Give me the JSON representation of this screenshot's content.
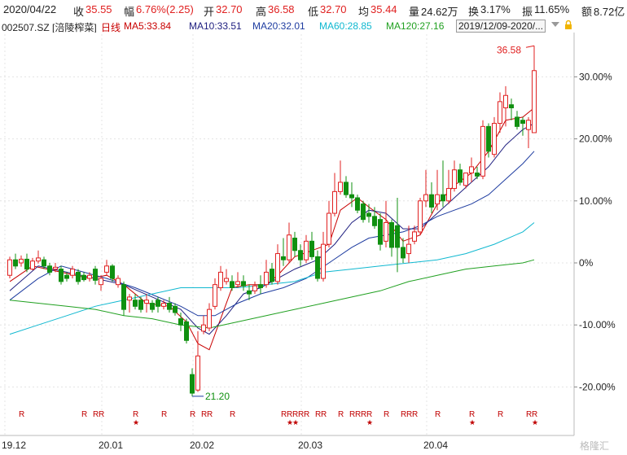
{
  "quote": {
    "date": "2020/04/22",
    "close_label": "收",
    "close": "35.55",
    "change_label": "幅",
    "change": "6.76%(2.25)",
    "open_label": "开",
    "open": "32.70",
    "high_label": "高",
    "high": "36.58",
    "low_label": "低",
    "low": "32.70",
    "avg_label": "均",
    "avg": "35.44",
    "volume_label": "量",
    "volume": "24.62万",
    "turnover_label": "换",
    "turnover": "3.17%",
    "amplitude_label": "振",
    "amplitude": "11.65%",
    "amount_label": "额",
    "amount": "8.72亿"
  },
  "indicators": {
    "symbol": "002507.SZ [涪陵榨菜]",
    "period": "日线",
    "ma5": "MA5:33.84",
    "ma10": "MA10:33.51",
    "ma20": "MA20:32.01",
    "ma60": "MA60:28.85",
    "ma120": "MA120:27.16",
    "range": "2019/12/09-2020/..."
  },
  "colors": {
    "up": "#e02020",
    "down": "#109010",
    "ma5": "#c80000",
    "ma10": "#202080",
    "ma20": "#1e3ca0",
    "ma60": "#10b8d0",
    "ma120": "#20a020",
    "grid": "#e4e4e4"
  },
  "icons": [
    "dropdown-arrow-icon",
    "lock-icon"
  ],
  "watermark": "格隆汇",
  "chart_data": {
    "type": "candlestick",
    "y_unit": "%",
    "ylim": [
      -24,
      40
    ],
    "y_ticks": [
      "30.00%",
      "20.00%",
      "10.00%",
      "0%",
      "-10.00%",
      "-20.00%"
    ],
    "y_tick_values": [
      30,
      20,
      10,
      0,
      -10,
      -20
    ],
    "x_ticks": [
      "19.12",
      "20.01",
      "20.02",
      "20.03",
      "20.04"
    ],
    "x_tick_index": [
      0,
      17,
      33,
      52,
      74
    ],
    "high_annotation": "36.58",
    "low_annotation": "21.20",
    "candles": [
      [
        0,
        -2.0,
        0.5,
        -2.5,
        1.0
      ],
      [
        1,
        0.5,
        -0.5,
        -1.0,
        1.5
      ],
      [
        2,
        0.0,
        0.6,
        -0.6,
        1.2
      ],
      [
        3,
        0.6,
        -1.0,
        -1.5,
        1.5
      ],
      [
        4,
        -1.0,
        0.3,
        -1.2,
        0.8
      ],
      [
        5,
        0.3,
        0.8,
        -0.1,
        2.0
      ],
      [
        6,
        0.5,
        -0.5,
        -1.0,
        1.0
      ],
      [
        7,
        -0.5,
        -1.5,
        -2.0,
        0.0
      ],
      [
        8,
        -1.0,
        -0.7,
        -1.5,
        0.0
      ],
      [
        9,
        -1.0,
        -3.0,
        -3.5,
        -0.5
      ],
      [
        10,
        -2.0,
        -2.5,
        -3.0,
        -1.5
      ],
      [
        11,
        -2.0,
        -1.0,
        -2.5,
        -0.5
      ],
      [
        12,
        -1.5,
        -3.0,
        -3.5,
        -1.0
      ],
      [
        13,
        -2.0,
        -2.7,
        -3.0,
        -1.5
      ],
      [
        14,
        -2.5,
        -2.0,
        -3.0,
        -1.5
      ],
      [
        15,
        -1.0,
        -2.8,
        -3.5,
        -0.5
      ],
      [
        16,
        -3.5,
        -2.5,
        -4.5,
        -2.0
      ],
      [
        17,
        -1.5,
        -0.5,
        -2.0,
        0.5
      ],
      [
        18,
        -0.5,
        -2.5,
        -3.0,
        -0.2
      ],
      [
        19,
        -3.5,
        -2.5,
        -4.0,
        -2.0
      ],
      [
        20,
        -3.5,
        -7.5,
        -8.5,
        -3.0
      ],
      [
        21,
        -6.0,
        -5.5,
        -8.0,
        -5.0
      ],
      [
        22,
        -6.0,
        -7.0,
        -7.5,
        -5.0
      ],
      [
        23,
        -6.0,
        -7.5,
        -8.0,
        -5.5
      ],
      [
        24,
        -6.5,
        -6.0,
        -8.0,
        -5.0
      ],
      [
        25,
        -6.5,
        -7.5,
        -8.0,
        -6.0
      ],
      [
        26,
        -6.0,
        -7.0,
        -8.0,
        -5.5
      ],
      [
        27,
        -7.0,
        -6.5,
        -7.5,
        -6.0
      ],
      [
        28,
        -6.5,
        -7.5,
        -8.0,
        -5.5
      ],
      [
        29,
        -7.0,
        -8.0,
        -8.5,
        -6.5
      ],
      [
        30,
        -9.0,
        -10.0,
        -11.0,
        -8.0
      ],
      [
        31,
        -9.5,
        -12.5,
        -13.0,
        -9.0
      ],
      [
        32,
        -18.0,
        -21.0,
        -21.5,
        -17.0
      ],
      [
        33,
        -20.5,
        -15.0,
        -20.8,
        -11.0
      ],
      [
        34,
        -11.0,
        -10.0,
        -11.5,
        -8.5
      ],
      [
        35,
        -10.5,
        -7.5,
        -11.0,
        -6.5
      ],
      [
        36,
        -7.0,
        -3.5,
        -7.5,
        -2.5
      ],
      [
        37,
        -4.0,
        -1.5,
        -4.5,
        -0.5
      ],
      [
        38,
        -3.0,
        -2.5,
        -3.5,
        -1.0
      ],
      [
        39,
        -3.0,
        -4.0,
        -4.5,
        -2.0
      ],
      [
        40,
        -3.5,
        -3.0,
        -4.0,
        -1.5
      ],
      [
        41,
        -3.0,
        -3.7,
        -4.5,
        -2.0
      ],
      [
        42,
        -4.5,
        -5.0,
        -6.0,
        -3.5
      ],
      [
        43,
        -4.5,
        -3.7,
        -5.0,
        -3.0
      ],
      [
        44,
        -3.5,
        -4.0,
        -5.0,
        -2.0
      ],
      [
        45,
        -3.5,
        -1.5,
        -4.0,
        0.5
      ],
      [
        46,
        -1.0,
        -3.0,
        -3.5,
        0.0
      ],
      [
        47,
        -3.0,
        1.5,
        -3.5,
        3.0
      ],
      [
        48,
        1.0,
        0.5,
        -0.5,
        4.0
      ],
      [
        49,
        0.5,
        4.5,
        0.0,
        6.5
      ],
      [
        50,
        4.0,
        2.0,
        1.0,
        5.0
      ],
      [
        51,
        2.0,
        0.5,
        -0.5,
        3.0
      ],
      [
        52,
        0.5,
        3.5,
        0.0,
        4.5
      ],
      [
        53,
        3.5,
        1.0,
        0.5,
        5.0
      ],
      [
        54,
        1.0,
        -2.5,
        -3.0,
        2.0
      ],
      [
        55,
        -2.5,
        3.0,
        -3.0,
        5.0
      ],
      [
        56,
        3.0,
        8.0,
        2.5,
        10.0
      ],
      [
        57,
        8.0,
        11.5,
        7.5,
        14.5
      ],
      [
        58,
        11.5,
        13.0,
        11.0,
        16.5
      ],
      [
        59,
        13.0,
        11.0,
        10.5,
        14.0
      ],
      [
        60,
        11.0,
        10.5,
        9.0,
        13.0
      ],
      [
        61,
        10.5,
        8.5,
        8.0,
        11.0
      ],
      [
        62,
        9.5,
        7.0,
        6.5,
        10.0
      ],
      [
        63,
        8.0,
        7.5,
        6.5,
        9.5
      ],
      [
        64,
        7.5,
        6.0,
        5.5,
        9.0
      ],
      [
        65,
        7.0,
        3.0,
        2.0,
        8.0
      ],
      [
        66,
        3.5,
        6.5,
        2.5,
        10.0
      ],
      [
        67,
        6.5,
        2.5,
        1.0,
        7.0
      ],
      [
        68,
        6.0,
        2.5,
        -1.5,
        10.5
      ],
      [
        69,
        2.5,
        0.8,
        0.0,
        4.0
      ],
      [
        70,
        1.5,
        3.0,
        0.0,
        6.0
      ],
      [
        71,
        3.5,
        5.0,
        3.0,
        6.0
      ],
      [
        72,
        5.0,
        10.0,
        4.5,
        10.5
      ],
      [
        73,
        10.0,
        11.0,
        9.0,
        15.0
      ],
      [
        74,
        11.0,
        9.0,
        8.0,
        13.0
      ],
      [
        75,
        9.5,
        11.0,
        8.5,
        15.0
      ],
      [
        76,
        11.0,
        10.0,
        9.0,
        16.5
      ],
      [
        77,
        10.0,
        12.0,
        9.5,
        15.0
      ],
      [
        78,
        12.0,
        15.0,
        11.5,
        16.5
      ],
      [
        79,
        15.0,
        13.0,
        12.5,
        16.0
      ],
      [
        80,
        12.5,
        14.5,
        12.0,
        14.5
      ],
      [
        81,
        14.5,
        15.5,
        13.0,
        17.0
      ],
      [
        82,
        14.5,
        14.0,
        13.5,
        15.5
      ],
      [
        83,
        14.0,
        22.0,
        13.5,
        23.0
      ],
      [
        84,
        22.0,
        18.0,
        17.0,
        22.5
      ],
      [
        85,
        17.5,
        22.5,
        17.0,
        23.5
      ],
      [
        86,
        22.5,
        26.0,
        21.0,
        27.5
      ],
      [
        87,
        25.0,
        27.0,
        22.0,
        28.5
      ],
      [
        88,
        25.5,
        25.0,
        23.0,
        26.5
      ],
      [
        89,
        23.5,
        22.0,
        21.5,
        24.5
      ],
      [
        90,
        23.0,
        22.5,
        20.5,
        23.5
      ],
      [
        91,
        21.5,
        23.0,
        18.5,
        23.5
      ],
      [
        92,
        21.0,
        31.0,
        21.0,
        35.0
      ]
    ],
    "ma_series": [
      {
        "name": "MA5",
        "values": [
          [
            0,
            -3.0
          ],
          [
            4,
            -0.5
          ],
          [
            9,
            -1.5
          ],
          [
            14,
            -2.5
          ],
          [
            17,
            -2.0
          ],
          [
            20,
            -3.5
          ],
          [
            24,
            -6.5
          ],
          [
            28,
            -7.0
          ],
          [
            31,
            -9.5
          ],
          [
            33,
            -13.0
          ],
          [
            35,
            -14.0
          ],
          [
            37,
            -9.0
          ],
          [
            39,
            -4.0
          ],
          [
            42,
            -3.5
          ],
          [
            45,
            -3.5
          ],
          [
            47,
            -2.0
          ],
          [
            50,
            1.0
          ],
          [
            53,
            2.0
          ],
          [
            56,
            3.0
          ],
          [
            58,
            8.5
          ],
          [
            61,
            10.5
          ],
          [
            63,
            9.0
          ],
          [
            66,
            7.0
          ],
          [
            69,
            3.5
          ],
          [
            72,
            4.5
          ],
          [
            75,
            9.5
          ],
          [
            78,
            12.5
          ],
          [
            81,
            14.5
          ],
          [
            84,
            18.0
          ],
          [
            87,
            23.0
          ],
          [
            90,
            23.5
          ],
          [
            92,
            25.0
          ]
        ]
      },
      {
        "name": "MA10",
        "values": [
          [
            0,
            -4.5
          ],
          [
            5,
            -0.5
          ],
          [
            10,
            -1.5
          ],
          [
            15,
            -2.5
          ],
          [
            20,
            -3.5
          ],
          [
            25,
            -5.5
          ],
          [
            30,
            -7.5
          ],
          [
            33,
            -10.5
          ],
          [
            35,
            -11.5
          ],
          [
            38,
            -8.5
          ],
          [
            41,
            -5.0
          ],
          [
            44,
            -4.0
          ],
          [
            47,
            -2.5
          ],
          [
            50,
            -1.0
          ],
          [
            54,
            0.5
          ],
          [
            57,
            3.0
          ],
          [
            60,
            6.5
          ],
          [
            63,
            8.5
          ],
          [
            66,
            8.0
          ],
          [
            69,
            5.5
          ],
          [
            72,
            5.5
          ],
          [
            75,
            8.0
          ],
          [
            78,
            10.5
          ],
          [
            81,
            13.0
          ],
          [
            84,
            15.5
          ],
          [
            87,
            19.0
          ],
          [
            90,
            21.5
          ],
          [
            92,
            22.5
          ]
        ]
      },
      {
        "name": "MA20",
        "values": [
          [
            0,
            -6.0
          ],
          [
            5,
            -2.5
          ],
          [
            9,
            -0.5
          ],
          [
            13,
            -1.5
          ],
          [
            17,
            -2.5
          ],
          [
            22,
            -4.0
          ],
          [
            26,
            -5.5
          ],
          [
            30,
            -7.0
          ],
          [
            33,
            -8.5
          ],
          [
            36,
            -8.5
          ],
          [
            40,
            -6.5
          ],
          [
            44,
            -5.0
          ],
          [
            48,
            -4.0
          ],
          [
            52,
            -2.5
          ],
          [
            56,
            0.0
          ],
          [
            60,
            2.5
          ],
          [
            63,
            4.0
          ],
          [
            66,
            4.5
          ],
          [
            69,
            5.0
          ],
          [
            72,
            6.0
          ],
          [
            75,
            7.5
          ],
          [
            78,
            8.5
          ],
          [
            81,
            9.5
          ],
          [
            84,
            11.0
          ],
          [
            87,
            13.5
          ],
          [
            90,
            16.0
          ],
          [
            92,
            18.0
          ]
        ]
      },
      {
        "name": "MA60",
        "values": [
          [
            0,
            -11.5
          ],
          [
            5,
            -10.0
          ],
          [
            10,
            -8.5
          ],
          [
            15,
            -7.0
          ],
          [
            20,
            -6.0
          ],
          [
            25,
            -5.0
          ],
          [
            30,
            -4.0
          ],
          [
            35,
            -4.0
          ],
          [
            40,
            -4.0
          ],
          [
            45,
            -3.5
          ],
          [
            50,
            -3.0
          ],
          [
            55,
            -1.5
          ],
          [
            60,
            -1.0
          ],
          [
            65,
            -0.5
          ],
          [
            70,
            0.0
          ],
          [
            75,
            0.5
          ],
          [
            80,
            1.5
          ],
          [
            85,
            3.0
          ],
          [
            90,
            5.0
          ],
          [
            92,
            6.5
          ]
        ]
      },
      {
        "name": "MA120",
        "values": [
          [
            0,
            -6.0
          ],
          [
            5,
            -6.5
          ],
          [
            10,
            -7.0
          ],
          [
            15,
            -7.5
          ],
          [
            20,
            -8.5
          ],
          [
            25,
            -9.0
          ],
          [
            30,
            -10.0
          ],
          [
            35,
            -10.5
          ],
          [
            40,
            -9.5
          ],
          [
            45,
            -8.5
          ],
          [
            50,
            -7.5
          ],
          [
            55,
            -6.5
          ],
          [
            60,
            -5.5
          ],
          [
            65,
            -4.5
          ],
          [
            70,
            -3.0
          ],
          [
            75,
            -2.0
          ],
          [
            80,
            -1.0
          ],
          [
            85,
            -0.5
          ],
          [
            90,
            0.0
          ],
          [
            92,
            0.5
          ]
        ]
      }
    ],
    "signals": [
      {
        "i": 2,
        "mark": "R"
      },
      {
        "i": 13,
        "mark": "R"
      },
      {
        "i": 15,
        "mark": "R"
      },
      {
        "i": 16,
        "mark": "R"
      },
      {
        "i": 22,
        "mark": "R",
        "star": true
      },
      {
        "i": 27,
        "mark": "R"
      },
      {
        "i": 32,
        "mark": "R"
      },
      {
        "i": 34,
        "mark": "R"
      },
      {
        "i": 35,
        "mark": "R"
      },
      {
        "i": 39,
        "mark": "R"
      },
      {
        "i": 48,
        "mark": "R"
      },
      {
        "i": 49,
        "mark": "R",
        "star": true
      },
      {
        "i": 50,
        "mark": "R",
        "star": true
      },
      {
        "i": 51,
        "mark": "R"
      },
      {
        "i": 52,
        "mark": "R"
      },
      {
        "i": 54,
        "mark": "R"
      },
      {
        "i": 55,
        "mark": "R"
      },
      {
        "i": 58,
        "mark": "R"
      },
      {
        "i": 60,
        "mark": "R"
      },
      {
        "i": 61,
        "mark": "R"
      },
      {
        "i": 62,
        "mark": "R"
      },
      {
        "i": 63,
        "mark": "R",
        "star": true
      },
      {
        "i": 66,
        "mark": "R"
      },
      {
        "i": 69,
        "mark": "R"
      },
      {
        "i": 70,
        "mark": "R"
      },
      {
        "i": 71,
        "mark": "R"
      },
      {
        "i": 75,
        "mark": "R"
      },
      {
        "i": 81,
        "mark": "R",
        "star": true
      },
      {
        "i": 86,
        "mark": "R"
      },
      {
        "i": 91,
        "mark": "R"
      },
      {
        "i": 92,
        "mark": "R",
        "star": true
      }
    ]
  }
}
